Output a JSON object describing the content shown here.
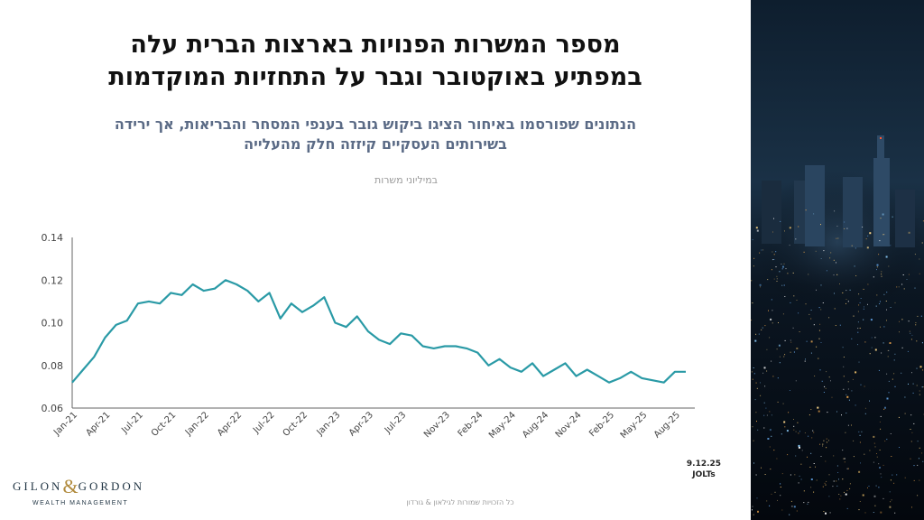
{
  "title_line1": "מספר המשרות הפנויות בארצות הברית עלה",
  "title_line2": "במפתיע באוקטובר וגבר על התחזיות המוקדמות",
  "subtitle_line1": "הנתונים שפורסמו באיחור הציגו ביקוש גובר בענפי המסחר והבריאות, אך ירידה",
  "subtitle_line2": "בשירותים העסקיים קיזזה חלק מהעלייה",
  "unit_label": "במיליוני משרות",
  "source_date": "9.12.25",
  "source_name": "JOLTs",
  "logo_left": "GILON",
  "logo_amp": "&",
  "logo_right": "GORDON",
  "logo_sub": "WEALTH MANAGEMENT",
  "copyright": "כל הזכויות שמורות לגילאון & גורדון",
  "colors": {
    "line": "#2a9aa6",
    "title": "#111111",
    "subtitle": "#5b6b86",
    "axis": "#555555"
  },
  "chart_data": {
    "type": "line",
    "title": "",
    "xlabel": "",
    "ylabel": "",
    "ylim": [
      0.06,
      0.14
    ],
    "yticks": [
      "0.06",
      "0.08",
      "0.10",
      "0.12",
      "0.14"
    ],
    "grid": false,
    "x_tick_labels": [
      "Jan-21",
      "Apr-21",
      "Jul-21",
      "Oct-21",
      "Jan-22",
      "Apr-22",
      "Jul-22",
      "Oct-22",
      "Jan-23",
      "Apr-23",
      "Jul-23",
      "Nov-23",
      "Feb-24",
      "May-24",
      "Aug-24",
      "Nov-24",
      "Feb-25",
      "May-25",
      "Aug-25"
    ],
    "x_tick_index": [
      0,
      3,
      6,
      9,
      12,
      15,
      18,
      21,
      24,
      27,
      30,
      34,
      37,
      40,
      43,
      46,
      49,
      52,
      55
    ],
    "series": [
      {
        "values": [
          0.072,
          0.078,
          0.084,
          0.093,
          0.099,
          0.101,
          0.109,
          0.11,
          0.109,
          0.114,
          0.113,
          0.118,
          0.115,
          0.116,
          0.12,
          0.118,
          0.115,
          0.11,
          0.114,
          0.102,
          0.109,
          0.105,
          0.108,
          0.112,
          0.1,
          0.098,
          0.103,
          0.096,
          0.092,
          0.09,
          0.095,
          0.094,
          0.089,
          0.088,
          0.089,
          0.089,
          0.088,
          0.086,
          0.08,
          0.083,
          0.079,
          0.077,
          0.081,
          0.075,
          0.078,
          0.081,
          0.075,
          0.078,
          0.075,
          0.072,
          0.074,
          0.077,
          0.074,
          0.073,
          0.072,
          0.077,
          0.077
        ]
      }
    ]
  }
}
